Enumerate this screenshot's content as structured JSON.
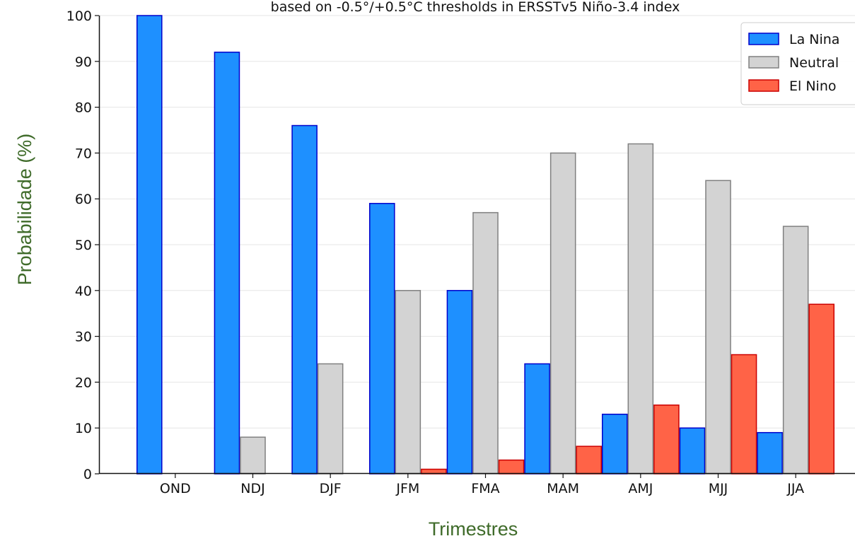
{
  "chart_data": {
    "type": "bar",
    "title": "based on -0.5°/+0.5°C thresholds in ERSSTv5 Niño-3.4 index",
    "xlabel": "Trimestres",
    "ylabel": "Probabilidade (%)",
    "ylim": [
      0,
      100
    ],
    "yticks": [
      "0",
      "10",
      "20",
      "30",
      "40",
      "50",
      "60",
      "70",
      "80",
      "90",
      "100"
    ],
    "grid": "horizontal",
    "legend_position": "top-right",
    "categories": [
      "OND",
      "NDJ",
      "DJF",
      "JFM",
      "FMA",
      "MAM",
      "AMJ",
      "MJJ",
      "JJA"
    ],
    "series": [
      {
        "name": "La Nina",
        "color": "#1e90ff",
        "edge": "#0000cc",
        "values": [
          100,
          92,
          76,
          59,
          40,
          24,
          13,
          10,
          9
        ]
      },
      {
        "name": "Neutral",
        "color": "#d3d3d3",
        "edge": "#808080",
        "values": [
          0,
          8,
          24,
          40,
          57,
          70,
          72,
          64,
          54
        ]
      },
      {
        "name": "El Nino",
        "color": "#ff6347",
        "edge": "#cc0000",
        "values": [
          0,
          0,
          0,
          1,
          3,
          6,
          15,
          26,
          37
        ]
      }
    ]
  }
}
